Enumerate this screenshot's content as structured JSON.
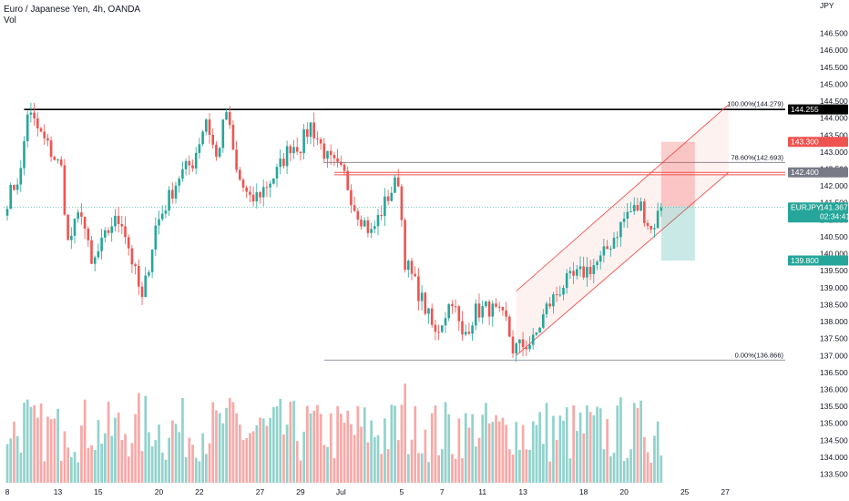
{
  "header": {
    "title": "Euro / Japanese Yen, 4h, OANDA",
    "subtitle": "Vol"
  },
  "chart_data": {
    "type": "candlestick",
    "title": "Euro / Japanese Yen, 4h, OANDA",
    "currency": "JPY",
    "symbol": "EURJPY",
    "ylim": [
      133.3,
      147.0
    ],
    "y_ticks": [
      133.5,
      134.0,
      134.5,
      135.0,
      135.5,
      136.0,
      136.5,
      137.0,
      137.5,
      138.0,
      138.5,
      139.0,
      139.5,
      140.0,
      140.5,
      141.0,
      141.5,
      142.0,
      142.5,
      143.0,
      143.5,
      144.0,
      144.5,
      145.0,
      145.5,
      146.0,
      146.5
    ],
    "y_tick_labels": [
      "133.500",
      "134.000",
      "134.500",
      "135.000",
      "135.500",
      "136.000",
      "136.500",
      "137.000",
      "137.500",
      "138.000",
      "138.500",
      "139.000",
      "139.500",
      "140.000",
      "140.500",
      "141.000",
      "141.500",
      "142.000",
      "142.500",
      "143.000",
      "143.500",
      "144.000",
      "144.500",
      "145.000",
      "145.500",
      "146.000",
      "146.500"
    ],
    "x_ticks": [
      {
        "label": "8",
        "bar": 0
      },
      {
        "label": "13",
        "bar": 15
      },
      {
        "label": "15",
        "bar": 27
      },
      {
        "label": "20",
        "bar": 45
      },
      {
        "label": "22",
        "bar": 57
      },
      {
        "label": "27",
        "bar": 75
      },
      {
        "label": "29",
        "bar": 87
      },
      {
        "label": "Jul",
        "bar": 99
      },
      {
        "label": "5",
        "bar": 117
      },
      {
        "label": "7",
        "bar": 129
      },
      {
        "label": "11",
        "bar": 141
      },
      {
        "label": "13",
        "bar": 153
      },
      {
        "label": "18",
        "bar": 171
      },
      {
        "label": "20",
        "bar": 183
      },
      {
        "label": "25",
        "bar": 201
      },
      {
        "label": "27",
        "bar": 213
      }
    ],
    "colors": {
      "up": "#26a69a",
      "down": "#ef5350",
      "vol_up": "#92d2cc",
      "vol_down": "#f7a9a7"
    },
    "waypoints": [
      [
        0,
        141.6
      ],
      [
        4,
        142.4
      ],
      [
        6,
        144.2
      ],
      [
        10,
        143.5
      ],
      [
        16,
        142.5
      ],
      [
        18,
        140.3
      ],
      [
        22,
        141.3
      ],
      [
        25,
        139.6
      ],
      [
        31,
        140.9
      ],
      [
        34,
        141.0
      ],
      [
        40,
        138.6
      ],
      [
        44,
        140.8
      ],
      [
        51,
        142.3
      ],
      [
        55,
        142.7
      ],
      [
        59,
        144.0
      ],
      [
        62,
        142.8
      ],
      [
        65,
        144.2
      ],
      [
        68,
        142.4
      ],
      [
        72,
        141.5
      ],
      [
        75,
        141.8
      ],
      [
        80,
        142.4
      ],
      [
        84,
        143.2
      ],
      [
        87,
        143.2
      ],
      [
        90,
        143.8
      ],
      [
        95,
        142.8
      ],
      [
        100,
        142.3
      ],
      [
        103,
        141.4
      ],
      [
        108,
        140.6
      ],
      [
        113,
        141.7
      ],
      [
        116,
        142.2
      ],
      [
        118,
        139.8
      ],
      [
        124,
        138.4
      ],
      [
        127,
        137.6
      ],
      [
        132,
        138.7
      ],
      [
        135,
        137.5
      ],
      [
        139,
        138.3
      ],
      [
        143,
        138.4
      ],
      [
        148,
        138.0
      ],
      [
        150,
        137.2
      ],
      [
        156,
        137.4
      ],
      [
        160,
        138.4
      ],
      [
        165,
        139.1
      ],
      [
        170,
        139.4
      ],
      [
        176,
        139.8
      ],
      [
        180,
        140.5
      ],
      [
        184,
        141.2
      ],
      [
        188,
        141.4
      ],
      [
        191,
        140.7
      ],
      [
        194,
        141.367
      ]
    ],
    "last_price": "141.367",
    "countdown": "02:34:41",
    "fib_retracement": [
      {
        "level": "100.00%",
        "price": "144.279",
        "label": "100.00%(144.279)"
      },
      {
        "level": "78.60%",
        "price": "142.693",
        "label": "78.60%(142.693)"
      },
      {
        "level": "0.00%",
        "price": "136.866",
        "label": "0.00%(136.866)"
      }
    ],
    "price_labels": [
      {
        "value": 144.255,
        "text": "144.255",
        "color": "#000000"
      },
      {
        "value": 143.3,
        "text": "143.300",
        "color": "#ef5350"
      },
      {
        "value": 142.4,
        "text": "142.400",
        "color": "#787b86"
      },
      {
        "value": 141.367,
        "text": "EURJPY",
        "color": "#26a69a",
        "extra": "141.367"
      },
      {
        "value": 139.8,
        "text": "139.800",
        "color": "#26a69a"
      }
    ],
    "horizontal_lines": [
      {
        "price": 144.255,
        "from_bar": 5,
        "color": "#000000"
      },
      {
        "price": 142.4,
        "from_bar": 97,
        "color": "#ef5350"
      },
      {
        "price": 142.33,
        "from_bar": 97,
        "color": "#ef5350"
      }
    ],
    "channel": {
      "lower": [
        [
          151,
          137.0
        ],
        [
          214,
          142.4
        ]
      ],
      "upper": [
        [
          151,
          138.9
        ],
        [
          214,
          144.4
        ]
      ]
    },
    "trade_box": {
      "entry": 141.4,
      "stop": 143.3,
      "target": 139.8,
      "from_bar": 194,
      "to_bar": 204
    },
    "grid": false,
    "legend": "none"
  }
}
